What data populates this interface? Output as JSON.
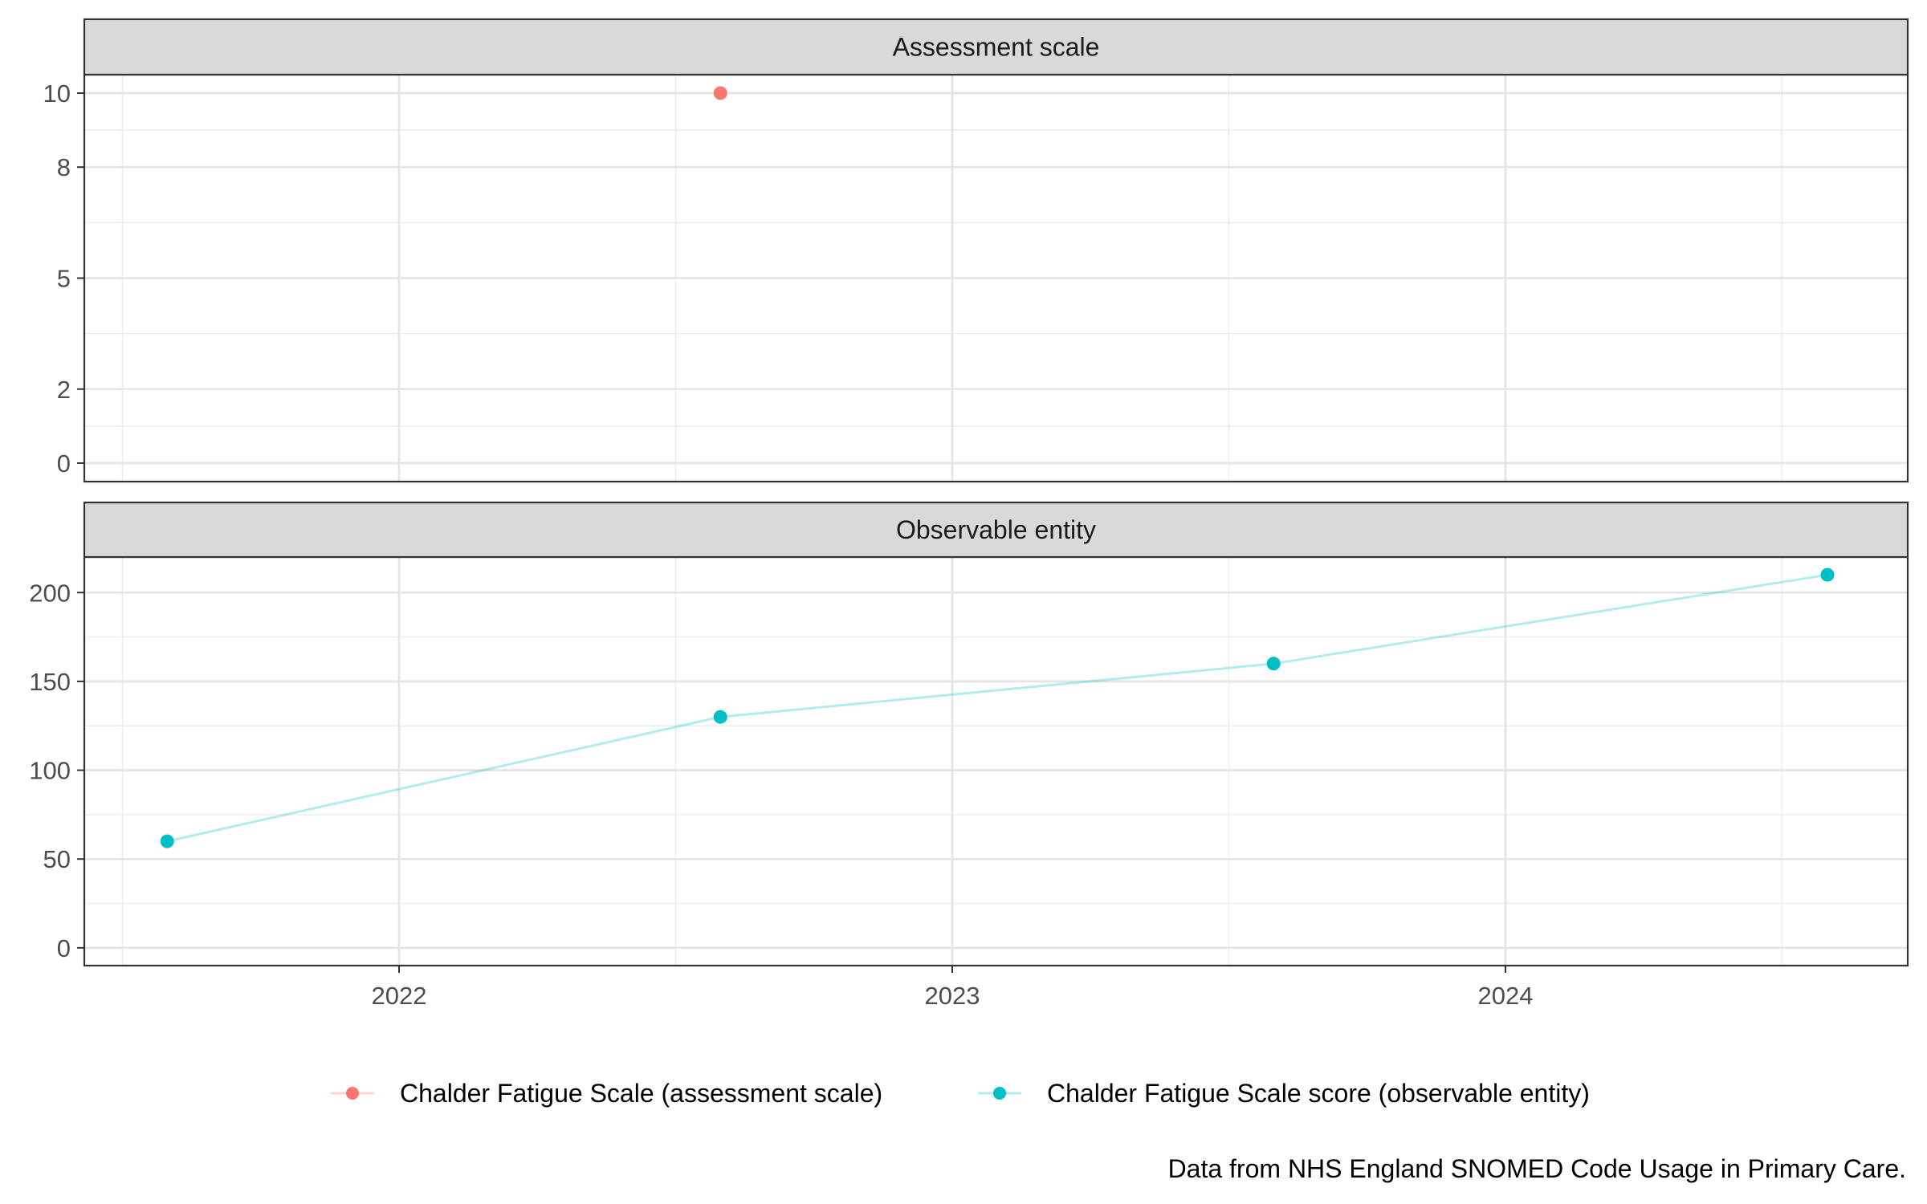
{
  "caption": "Data from NHS England SNOMED Code Usage in Primary Care.",
  "chart_data": {
    "type": "line",
    "x_ticks": [
      "2022",
      "2023",
      "2024"
    ],
    "panels": [
      {
        "title": "Assessment scale",
        "y_ticks": [
          0,
          2,
          5,
          8,
          10
        ],
        "ylim": [
          -0.5,
          10.5
        ],
        "series": [
          {
            "name": "Chalder Fatigue Scale (assessment scale)",
            "color": "#F8766D",
            "points": [
              {
                "x": "2022-08-01",
                "y": 10
              }
            ]
          }
        ]
      },
      {
        "title": "Observable entity",
        "y_ticks": [
          0,
          50,
          100,
          150,
          200
        ],
        "ylim": [
          -10,
          220
        ],
        "series": [
          {
            "name": "Chalder Fatigue Scale score (observable entity)",
            "color": "#00BFC4",
            "points": [
              {
                "x": "2021-08-01",
                "y": 60
              },
              {
                "x": "2022-08-01",
                "y": 130
              },
              {
                "x": "2023-08-01",
                "y": 160
              },
              {
                "x": "2024-08-01",
                "y": 210
              }
            ]
          }
        ]
      }
    ],
    "legend": {
      "position": "bottom",
      "entries": [
        {
          "label": "Chalder Fatigue Scale (assessment scale)",
          "color": "#F8766D"
        },
        {
          "label": "Chalder Fatigue Scale score (observable entity)",
          "color": "#00BFC4"
        }
      ]
    },
    "grid": true
  }
}
